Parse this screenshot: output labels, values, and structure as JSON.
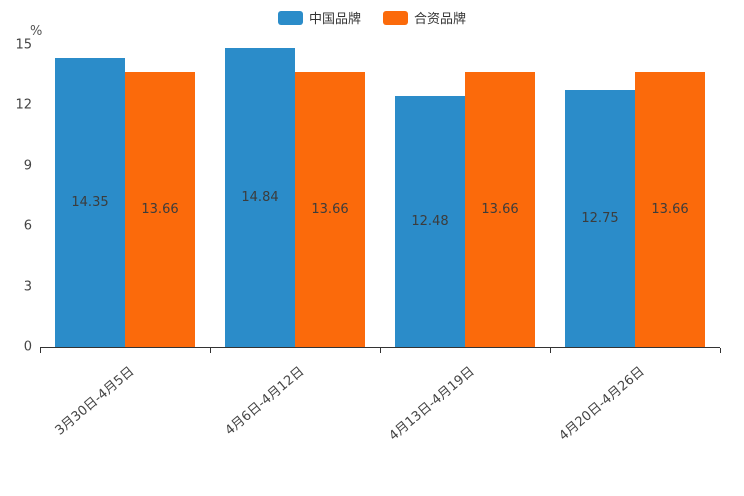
{
  "chart_data": {
    "type": "bar",
    "title": "",
    "categories": [
      "3月30日-4月5日",
      "4月6日-4月12日",
      "4月13日-4月19日",
      "4月20日-4月26日"
    ],
    "series": [
      {
        "name": "中国品牌",
        "color": "#2b8cc9",
        "values": [
          14.35,
          14.84,
          12.48,
          12.75
        ]
      },
      {
        "name": "合资品牌",
        "color": "#fb6a0b",
        "values": [
          13.66,
          13.66,
          13.66,
          13.66
        ]
      }
    ],
    "xlabel": "",
    "ylabel": "%",
    "ylim": [
      0,
      15
    ],
    "yticks": [
      0,
      3,
      6,
      9,
      12,
      15
    ],
    "grid": false,
    "legend_position": "top",
    "value_labels": "inside-center"
  }
}
